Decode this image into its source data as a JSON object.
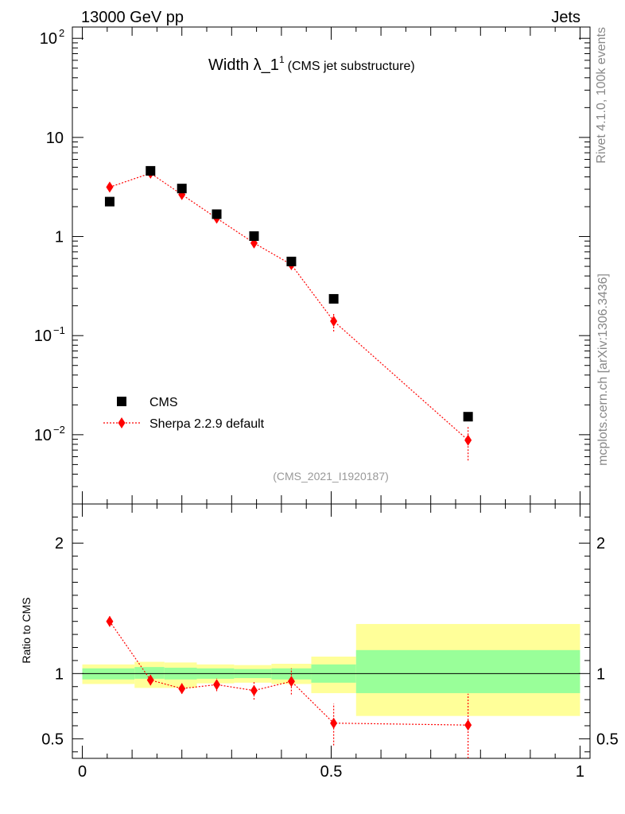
{
  "header": {
    "energy_label": "13000 GeV pp",
    "category": "Jets"
  },
  "side_text": {
    "rivet": "Rivet 4.1.0,  100k events",
    "mcplots": "mcplots.cern.ch [arXiv:1306.3436]"
  },
  "chart_data": [
    {
      "type": "scatter",
      "title_main": "Width λ_1",
      "title_sup": "1",
      "title_sub": "(CMS jet substructure)",
      "analysis_id": "(CMS_2021_I1920187)",
      "yscale": "log",
      "ylim": [
        0.002,
        130
      ],
      "xlim": [
        -0.02,
        1.02
      ],
      "y_ticks": [
        {
          "v": 100,
          "base": "10",
          "exp": "2"
        },
        {
          "v": 10,
          "base": "10",
          "exp": ""
        },
        {
          "v": 1,
          "base": "1",
          "exp": ""
        },
        {
          "v": 0.1,
          "base": "10",
          "exp": "−1"
        },
        {
          "v": 0.01,
          "base": "10",
          "exp": "−2"
        }
      ],
      "legend_position": "bottom-left",
      "series": [
        {
          "name": "CMS",
          "color": "#000000",
          "marker": "square",
          "x": [
            0.055,
            0.137,
            0.2,
            0.27,
            0.345,
            0.42,
            0.505,
            0.775
          ],
          "y": [
            2.25,
            4.6,
            3.05,
            1.68,
            1.01,
            0.56,
            0.235,
            0.0152
          ]
        },
        {
          "name": "Sherpa 2.2.9 default",
          "color": "#ff0000",
          "marker": "diamond",
          "x": [
            0.055,
            0.137,
            0.2,
            0.27,
            0.345,
            0.42,
            0.505,
            0.775
          ],
          "y": [
            3.15,
            4.35,
            2.65,
            1.53,
            0.86,
            0.52,
            0.14,
            0.0088
          ],
          "yerr_low": [
            0.12,
            0.1,
            0.1,
            0.06,
            0.05,
            0.04,
            0.03,
            0.0033
          ],
          "yerr_high": [
            0.12,
            0.1,
            0.1,
            0.06,
            0.05,
            0.04,
            0.03,
            0.0035
          ]
        }
      ]
    },
    {
      "type": "ratio",
      "ylabel": "Ratio to CMS",
      "ylim": [
        0.35,
        2.3
      ],
      "y_ticks": [
        {
          "v": 2,
          "label": "2"
        },
        {
          "v": 1,
          "label": "1"
        },
        {
          "v": 0.5,
          "label": "0.5"
        }
      ],
      "x_ticks": [
        {
          "v": 0,
          "label": "0"
        },
        {
          "v": 0.5,
          "label": "0.5"
        },
        {
          "v": 1,
          "label": "1"
        }
      ],
      "reference_line": 1,
      "bins": [
        {
          "lo": 0.0,
          "hi": 0.105,
          "stat": [
            0.955,
            1.04
          ],
          "total": [
            0.92,
            1.07
          ]
        },
        {
          "lo": 0.105,
          "hi": 0.165,
          "stat": [
            0.96,
            1.05
          ],
          "total": [
            0.89,
            1.09
          ]
        },
        {
          "lo": 0.165,
          "hi": 0.23,
          "stat": [
            0.955,
            1.045
          ],
          "total": [
            0.89,
            1.085
          ]
        },
        {
          "lo": 0.23,
          "hi": 0.305,
          "stat": [
            0.96,
            1.04
          ],
          "total": [
            0.925,
            1.07
          ]
        },
        {
          "lo": 0.305,
          "hi": 0.38,
          "stat": [
            0.965,
            1.035
          ],
          "total": [
            0.93,
            1.065
          ]
        },
        {
          "lo": 0.38,
          "hi": 0.46,
          "stat": [
            0.955,
            1.04
          ],
          "total": [
            0.92,
            1.075
          ]
        },
        {
          "lo": 0.46,
          "hi": 0.55,
          "stat": [
            0.93,
            1.07
          ],
          "total": [
            0.85,
            1.13
          ]
        },
        {
          "lo": 0.55,
          "hi": 1.0,
          "stat": [
            0.85,
            1.18
          ],
          "total": [
            0.675,
            1.38
          ]
        }
      ],
      "series": [
        {
          "name": "Sherpa 2.2.9 default / CMS",
          "color": "#ff0000",
          "x": [
            0.055,
            0.137,
            0.2,
            0.27,
            0.345,
            0.42,
            0.505,
            0.775
          ],
          "y": [
            1.4,
            0.95,
            0.885,
            0.915,
            0.87,
            0.94,
            0.62,
            0.605
          ],
          "yerr_low": [
            0.04,
            0.04,
            0.04,
            0.05,
            0.07,
            0.1,
            0.17,
            0.3
          ],
          "yerr_high": [
            0.04,
            0.04,
            0.04,
            0.05,
            0.07,
            0.1,
            0.15,
            0.24
          ]
        }
      ]
    }
  ]
}
